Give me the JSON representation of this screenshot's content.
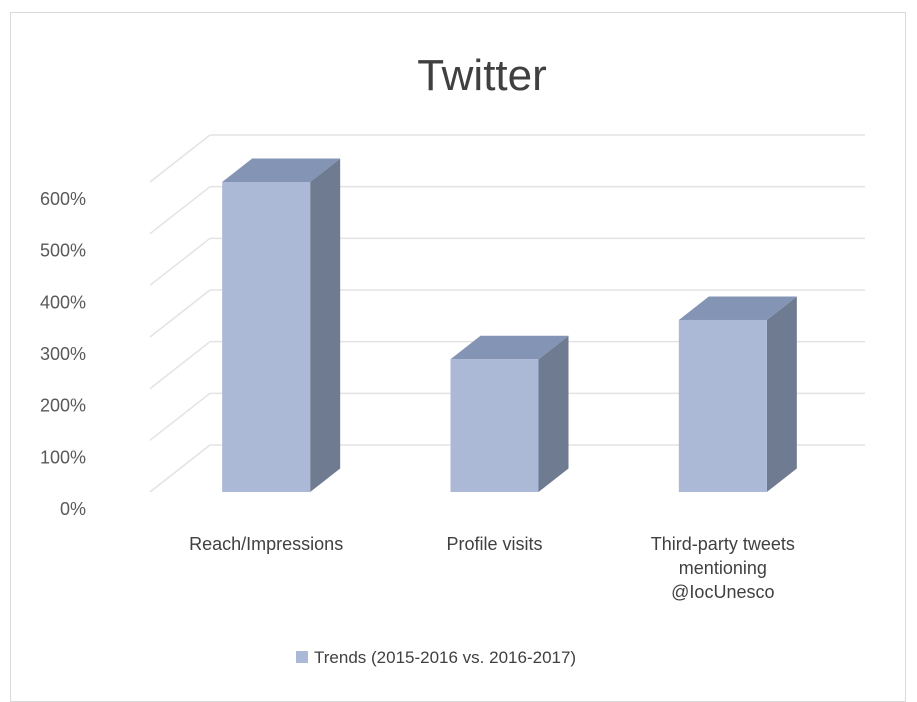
{
  "chart_data": {
    "type": "bar",
    "title": "Twitter",
    "categories": [
      [
        "Reach/Impressions"
      ],
      [
        "Profile visits"
      ],
      [
        "Third-party tweets",
        "mentioning",
        "@IocUnesco"
      ]
    ],
    "series": [
      {
        "name": "Trends (2015-2016 vs. 2016-2017)",
        "values": [
          600,
          257,
          333
        ],
        "color": "#abb9d6"
      }
    ],
    "y_ticks": [
      "0%",
      "100%",
      "200%",
      "300%",
      "400%",
      "500%",
      "600%"
    ],
    "ylim": [
      0,
      600
    ],
    "unit": "%",
    "style": "3d-column",
    "grid": true,
    "legend": "bottom"
  }
}
